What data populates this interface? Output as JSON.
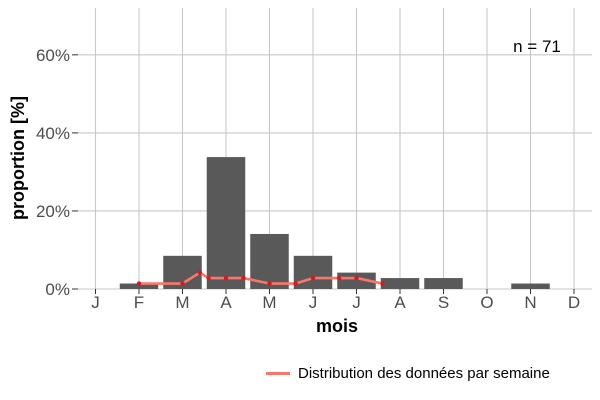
{
  "chart_data": {
    "type": "bar",
    "categories": [
      "J",
      "F",
      "M",
      "A",
      "M",
      "J",
      "J",
      "A",
      "S",
      "O",
      "N",
      "D"
    ],
    "values": [
      0,
      1.4,
      8.5,
      33.8,
      14.1,
      8.5,
      4.2,
      2.8,
      2.8,
      0,
      1.4,
      0
    ],
    "xlabel": "mois",
    "ylabel": "proportion [%]",
    "ylim": [
      0,
      72
    ],
    "yticks": [
      0,
      20,
      40,
      60
    ],
    "ytick_labels": [
      "0%",
      "20%",
      "40%",
      "60%"
    ],
    "grid": true,
    "bar_color": "#595959",
    "annotation": "n = 71",
    "series": [
      {
        "name": "Distribution des données par semaine",
        "type": "line",
        "color": "#f8766d",
        "x": [
          1.0,
          2.0,
          2.4,
          2.6,
          3.0,
          3.4,
          4.0,
          4.6,
          5.0,
          5.6,
          6.0,
          6.6
        ],
        "y": [
          1.4,
          1.4,
          4.2,
          2.8,
          2.8,
          2.8,
          1.4,
          1.4,
          2.8,
          2.8,
          2.8,
          1.4
        ]
      }
    ]
  },
  "legend": {
    "label": "Distribution des données par semaine",
    "color": "#f8766d"
  }
}
